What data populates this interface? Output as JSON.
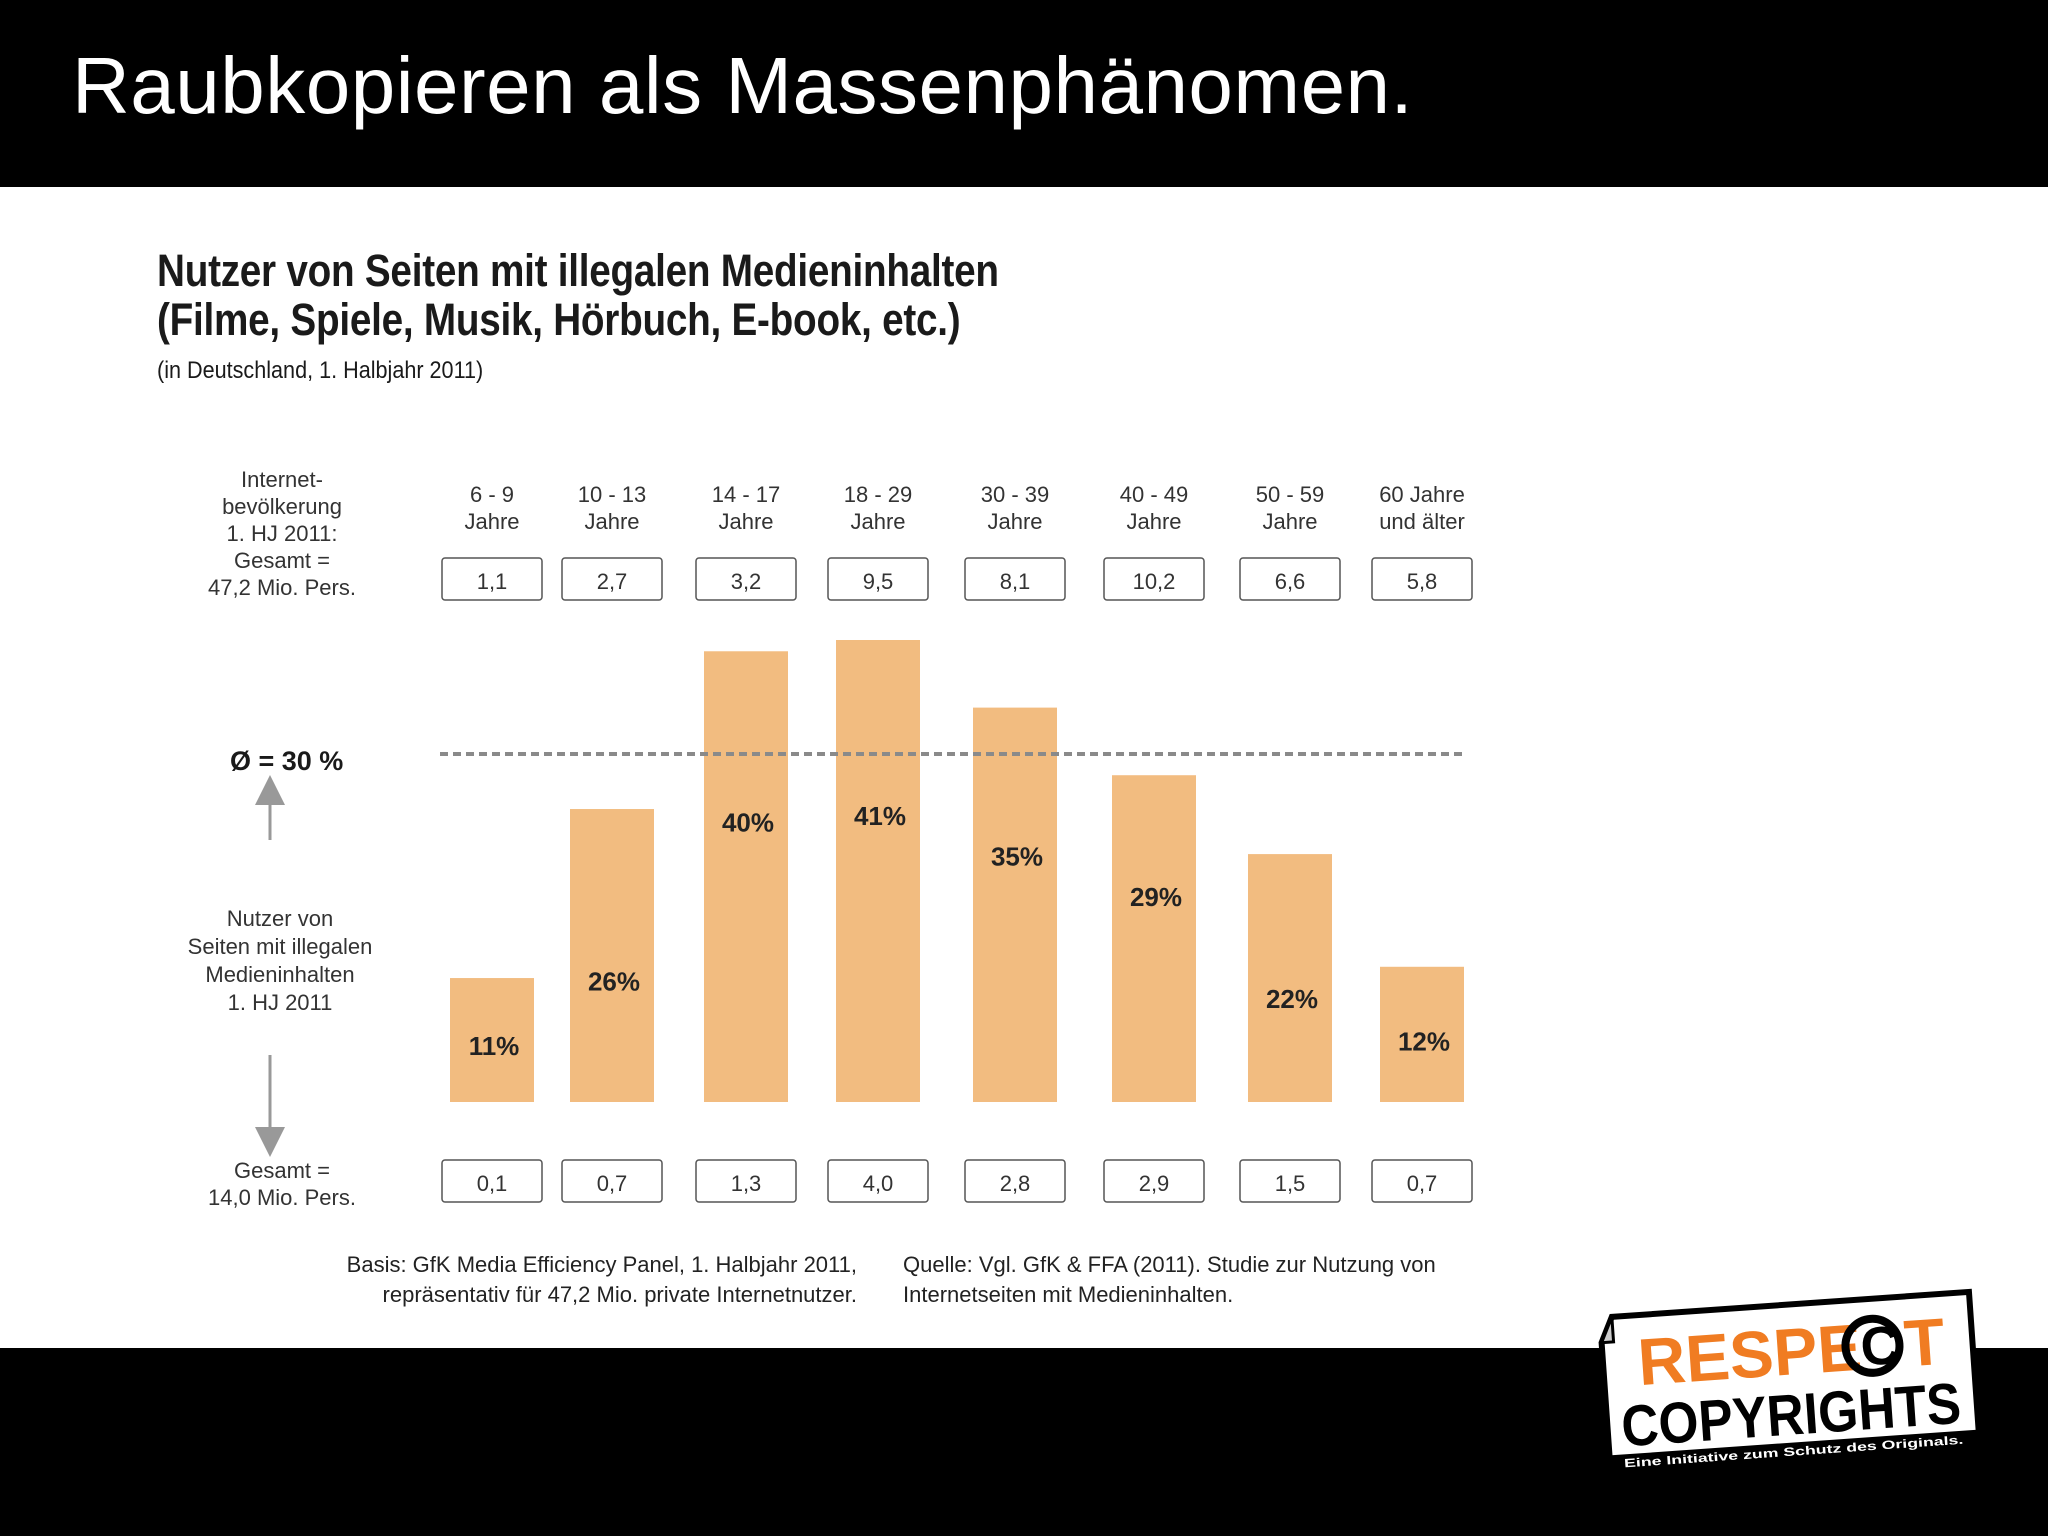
{
  "slide_title": "Raubkopieren als Massenphänomen.",
  "chart_data": {
    "type": "bar",
    "title_lines": [
      "Nutzer von Seiten mit illegalen Medieninhalten",
      "(Filme, Spiele, Musik, Hörbuch, E-book, etc.)"
    ],
    "subtitle": "(in Deutschland, 1. Halbjahr 2011)",
    "categories": [
      [
        "6 - 9",
        "Jahre"
      ],
      [
        "10 - 13",
        "Jahre"
      ],
      [
        "14 - 17",
        "Jahre"
      ],
      [
        "18 - 29",
        "Jahre"
      ],
      [
        "30 - 39",
        "Jahre"
      ],
      [
        "40 - 49",
        "Jahre"
      ],
      [
        "50 - 59",
        "Jahre"
      ],
      [
        "60 Jahre",
        "und älter"
      ]
    ],
    "internet_population_mio": [
      "1,1",
      "2,7",
      "3,2",
      "9,5",
      "8,1",
      "10,2",
      "6,6",
      "5,8"
    ],
    "values": [
      11,
      26,
      40,
      41,
      35,
      29,
      22,
      12
    ],
    "value_labels": [
      "11%",
      "26%",
      "40%",
      "41%",
      "35%",
      "29%",
      "22%",
      "12%"
    ],
    "users_mio": [
      "0,1",
      "0,7",
      "1,3",
      "4,0",
      "2,8",
      "2,9",
      "1,5",
      "0,7"
    ],
    "average_value": 30,
    "average_label": "Ø = 30 %",
    "ylim": [
      0,
      45
    ],
    "bar_color": "#F2BC80",
    "average_line_color": "#8a8a8a"
  },
  "labels": {
    "population": [
      "Internet-",
      "bevölkerung",
      "1. HJ 2011:",
      "Gesamt =",
      "47,2 Mio. Pers."
    ],
    "users": [
      "Nutzer von",
      "Seiten mit illegalen",
      "Medieninhalten",
      "1. HJ 2011"
    ],
    "users_total": [
      "Gesamt =",
      "14,0 Mio. Pers."
    ]
  },
  "footnotes": {
    "basis": "Basis: GfK Media Efficiency Panel, 1. Halbjahr 2011,\nrepräsentativ für 47,2 Mio. private Internetnutzer.",
    "source": "Quelle: Vgl. GfK & FFA (2011). Studie zur Nutzung von\nInternetseiten mit Medieninhalten."
  },
  "logo": {
    "line1_a": "RESPE",
    "line1_symbol": "C",
    "line1_b": "T",
    "line2": "COPYRIGHTS",
    "tagline": "Eine Initiative zum Schutz des Originals.",
    "accent_color": "#F07C22"
  }
}
